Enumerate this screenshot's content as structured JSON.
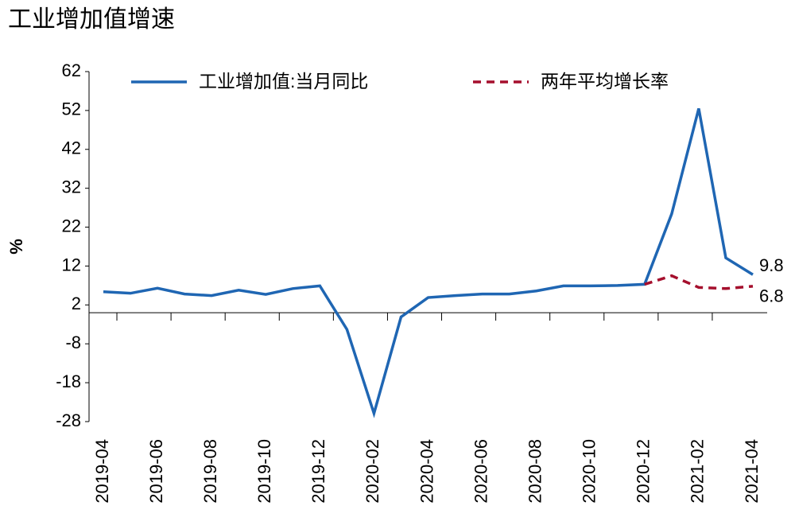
{
  "chart_data": {
    "type": "line",
    "title": "工业增加值增速",
    "y_label": "%",
    "categories": [
      "2019-04",
      null,
      "2019-06",
      null,
      "2019-08",
      null,
      "2019-10",
      null,
      "2019-12",
      null,
      "2020-02",
      null,
      "2020-04",
      null,
      "2020-06",
      null,
      "2020-08",
      null,
      "2020-10",
      null,
      "2020-12",
      null,
      "2021-02",
      null,
      "2021-04"
    ],
    "series": [
      {
        "name": "工业增加值:当月同比",
        "color": "#1f66b3",
        "dashed": false,
        "values": [
          5.4,
          5.0,
          6.3,
          4.8,
          4.4,
          5.8,
          4.7,
          6.2,
          6.9,
          -4.3,
          -25.9,
          -1.1,
          3.9,
          4.4,
          4.8,
          4.8,
          5.6,
          6.9,
          6.9,
          7.0,
          7.3,
          25.4,
          52.5,
          14.1,
          9.8
        ],
        "value_labels": [
          null,
          null,
          null,
          null,
          null,
          null,
          null,
          null,
          null,
          null,
          null,
          null,
          null,
          null,
          null,
          null,
          null,
          null,
          null,
          null,
          null,
          null,
          null,
          null,
          "9.8"
        ]
      },
      {
        "name": "两年平均增长率",
        "color": "#a50f2d",
        "dashed": true,
        "values": [
          null,
          null,
          null,
          null,
          null,
          null,
          null,
          null,
          null,
          null,
          null,
          null,
          null,
          null,
          null,
          null,
          null,
          null,
          null,
          null,
          7.3,
          9.5,
          6.5,
          6.2,
          6.8
        ],
        "value_labels": [
          null,
          null,
          null,
          null,
          null,
          null,
          null,
          null,
          null,
          null,
          null,
          null,
          null,
          null,
          null,
          null,
          null,
          null,
          null,
          null,
          null,
          null,
          null,
          null,
          "6.8"
        ]
      }
    ],
    "ylim": [
      -28,
      62
    ],
    "yticks": [
      -28,
      -18,
      -8,
      2,
      12,
      22,
      32,
      42,
      52,
      62
    ],
    "legend": "top"
  }
}
